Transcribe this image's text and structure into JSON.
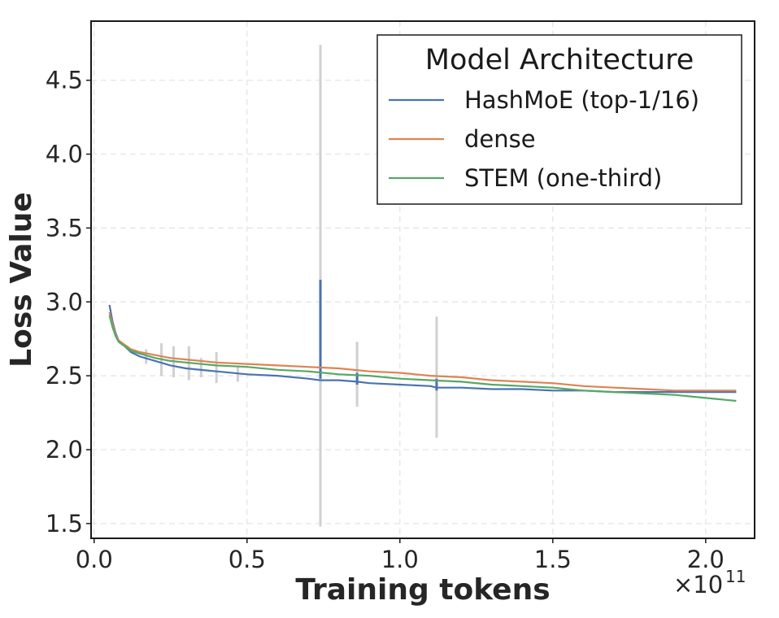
{
  "chart_data": {
    "type": "line",
    "title": "",
    "xlabel": "Training tokens",
    "ylabel": "Loss Value",
    "x_offset_text": "×10",
    "x_offset_exponent": "11",
    "xlim": [
      -0.01,
      2.16
    ],
    "ylim": [
      1.4,
      4.9
    ],
    "x_ticks": [
      0.0,
      0.5,
      1.0,
      1.5,
      2.0
    ],
    "x_tick_labels": [
      "0.0",
      "0.5",
      "1.0",
      "1.5",
      "2.0"
    ],
    "y_ticks": [
      1.5,
      2.0,
      2.5,
      3.0,
      3.5,
      4.0,
      4.5
    ],
    "y_tick_labels": [
      "1.5",
      "2.0",
      "2.5",
      "3.0",
      "3.5",
      "4.0",
      "4.5"
    ],
    "grid": true,
    "legend": {
      "title": "Model Architecture",
      "position": "top-right"
    },
    "series": [
      {
        "name": "HashMoE (top-1/16)",
        "color": "#4c72b0",
        "x": [
          0.05,
          0.06,
          0.07,
          0.08,
          0.1,
          0.12,
          0.15,
          0.2,
          0.25,
          0.3,
          0.4,
          0.5,
          0.6,
          0.7,
          0.74,
          0.8,
          0.86,
          0.9,
          1.0,
          1.1,
          1.12,
          1.2,
          1.3,
          1.4,
          1.5,
          1.6,
          1.7,
          1.8,
          1.9,
          2.0,
          2.1
        ],
        "y": [
          2.98,
          2.87,
          2.79,
          2.74,
          2.7,
          2.66,
          2.63,
          2.6,
          2.57,
          2.55,
          2.53,
          2.51,
          2.5,
          2.48,
          2.47,
          2.47,
          2.46,
          2.45,
          2.44,
          2.43,
          2.42,
          2.42,
          2.41,
          2.41,
          2.4,
          2.4,
          2.39,
          2.39,
          2.39,
          2.39,
          2.39
        ],
        "spikes": [
          {
            "x": 0.74,
            "y_low": 2.48,
            "y_high": 3.15
          },
          {
            "x": 0.86,
            "y_low": 2.44,
            "y_high": 2.52
          },
          {
            "x": 1.12,
            "y_low": 2.4,
            "y_high": 2.48
          }
        ]
      },
      {
        "name": "dense",
        "color": "#dd8452",
        "x": [
          0.05,
          0.06,
          0.07,
          0.08,
          0.1,
          0.12,
          0.15,
          0.2,
          0.25,
          0.3,
          0.4,
          0.5,
          0.6,
          0.7,
          0.8,
          0.9,
          1.0,
          1.1,
          1.2,
          1.3,
          1.4,
          1.5,
          1.6,
          1.7,
          1.8,
          1.9,
          2.0,
          2.1
        ],
        "y": [
          2.93,
          2.85,
          2.78,
          2.74,
          2.71,
          2.68,
          2.66,
          2.64,
          2.62,
          2.61,
          2.59,
          2.58,
          2.57,
          2.56,
          2.55,
          2.53,
          2.52,
          2.5,
          2.49,
          2.47,
          2.46,
          2.45,
          2.43,
          2.42,
          2.41,
          2.4,
          2.4,
          2.4
        ]
      },
      {
        "name": "STEM (one-third)",
        "color": "#55a868",
        "x": [
          0.05,
          0.06,
          0.07,
          0.08,
          0.1,
          0.12,
          0.15,
          0.2,
          0.25,
          0.3,
          0.4,
          0.5,
          0.6,
          0.7,
          0.8,
          0.9,
          1.0,
          1.1,
          1.2,
          1.3,
          1.4,
          1.5,
          1.6,
          1.7,
          1.8,
          1.9,
          2.0,
          2.1
        ],
        "y": [
          2.91,
          2.83,
          2.77,
          2.73,
          2.7,
          2.67,
          2.65,
          2.62,
          2.6,
          2.59,
          2.57,
          2.56,
          2.54,
          2.53,
          2.51,
          2.5,
          2.48,
          2.47,
          2.46,
          2.44,
          2.43,
          2.42,
          2.4,
          2.39,
          2.38,
          2.37,
          2.35,
          2.33
        ]
      }
    ],
    "variance_bars": {
      "color": "#d0d0d0",
      "bars": [
        {
          "x": 0.17,
          "y_low": 2.58,
          "y_high": 2.68
        },
        {
          "x": 0.22,
          "y_low": 2.5,
          "y_high": 2.72
        },
        {
          "x": 0.26,
          "y_low": 2.49,
          "y_high": 2.7
        },
        {
          "x": 0.31,
          "y_low": 2.47,
          "y_high": 2.7
        },
        {
          "x": 0.35,
          "y_low": 2.49,
          "y_high": 2.62
        },
        {
          "x": 0.4,
          "y_low": 2.45,
          "y_high": 2.66
        },
        {
          "x": 0.47,
          "y_low": 2.46,
          "y_high": 2.56
        },
        {
          "x": 0.74,
          "y_low": 1.48,
          "y_high": 4.74
        },
        {
          "x": 0.86,
          "y_low": 2.29,
          "y_high": 2.73
        },
        {
          "x": 1.12,
          "y_low": 2.08,
          "y_high": 2.9
        }
      ]
    }
  }
}
